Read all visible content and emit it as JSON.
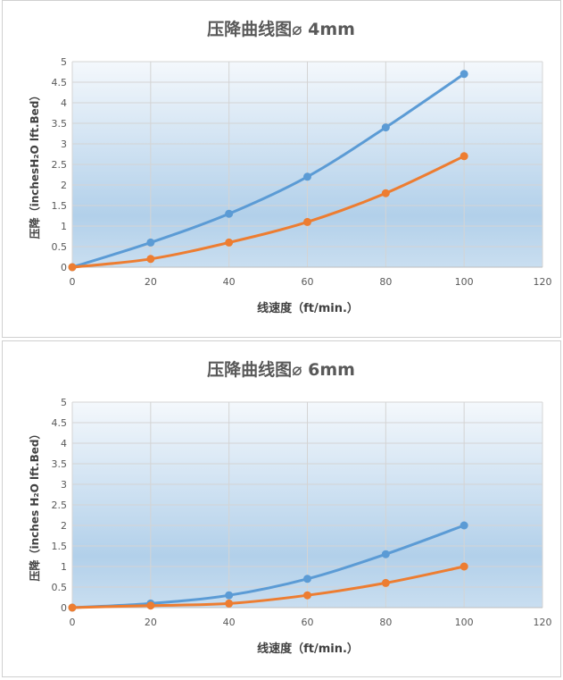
{
  "chart_data": [
    {
      "type": "line",
      "title": "压降曲线图⌀ 4mm",
      "xlabel": "线速度（ft/min.）",
      "ylabel": "压降（inchesH₂O lft.Bed）",
      "xlim": [
        0,
        120
      ],
      "ylim": [
        0,
        5
      ],
      "xticks": [
        "0",
        "20",
        "40",
        "60",
        "80",
        "100",
        "120"
      ],
      "yticks": [
        "0",
        "0.5",
        "1",
        "1.5",
        "2",
        "2.5",
        "3",
        "3.5",
        "4",
        "4.5",
        "5"
      ],
      "grid": true,
      "x": [
        0,
        20,
        40,
        60,
        80,
        100
      ],
      "series": [
        {
          "name": "blue",
          "color": "#5b9bd5",
          "values": [
            0,
            0.6,
            1.3,
            2.2,
            3.4,
            4.7
          ]
        },
        {
          "name": "orange",
          "color": "#ed7d31",
          "values": [
            0,
            0.2,
            0.6,
            1.1,
            1.8,
            2.7
          ]
        }
      ]
    },
    {
      "type": "line",
      "title": "压降曲线图⌀ 6mm",
      "xlabel": "线速度（ft/min.）",
      "ylabel": "压降（inches H₂O lft.Bed）",
      "xlim": [
        0,
        120
      ],
      "ylim": [
        0,
        5
      ],
      "xticks": [
        "0",
        "20",
        "40",
        "60",
        "80",
        "100",
        "120"
      ],
      "yticks": [
        "0",
        "0.5",
        "1",
        "1.5",
        "2",
        "2.5",
        "3",
        "3.5",
        "4",
        "4.5",
        "5"
      ],
      "grid": true,
      "x": [
        0,
        20,
        40,
        60,
        80,
        100
      ],
      "series": [
        {
          "name": "blue",
          "color": "#5b9bd5",
          "values": [
            0,
            0.1,
            0.3,
            0.7,
            1.3,
            2.0
          ]
        },
        {
          "name": "orange",
          "color": "#ed7d31",
          "values": [
            0,
            0.05,
            0.1,
            0.3,
            0.6,
            1.0
          ]
        }
      ]
    }
  ]
}
